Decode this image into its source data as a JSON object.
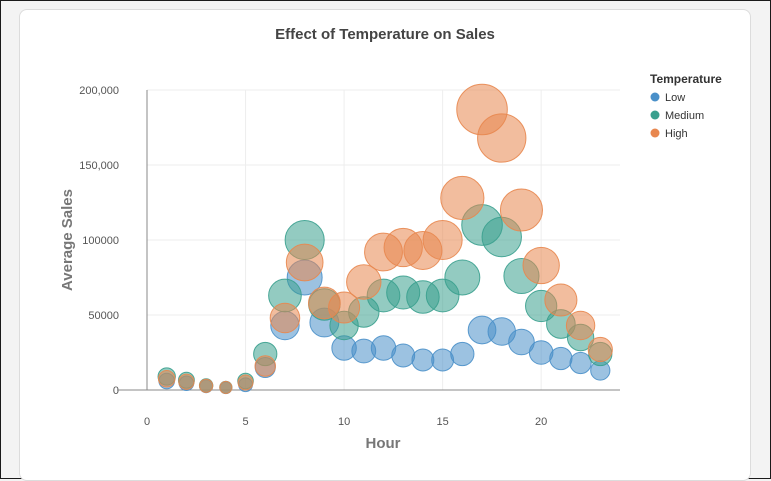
{
  "chart_data": {
    "type": "scatter",
    "title": "Effect of Temperature on Sales",
    "xlabel": "Hour",
    "ylabel": "Average Sales",
    "xlim": [
      0,
      24
    ],
    "ylim": [
      0,
      200000
    ],
    "x_ticks": [
      0,
      5,
      10,
      15,
      20
    ],
    "y_ticks": [
      0,
      50000,
      100000,
      150000,
      200000
    ],
    "y_tick_labels": [
      "0",
      "50000",
      "100000",
      "150,000",
      "200,000"
    ],
    "grid": true,
    "legend": {
      "title": "Temperature",
      "position": "top-right"
    },
    "series": [
      {
        "name": "Low",
        "color": "#4a90c9",
        "points": [
          [
            1,
            6000
          ],
          [
            2,
            4500
          ],
          [
            3,
            2500
          ],
          [
            4,
            1500
          ],
          [
            5,
            3500
          ],
          [
            6,
            15000
          ],
          [
            7,
            43000
          ],
          [
            8,
            75000
          ],
          [
            9,
            45000
          ],
          [
            10,
            28000
          ],
          [
            11,
            26000
          ],
          [
            12,
            28000
          ],
          [
            13,
            23000
          ],
          [
            14,
            20000
          ],
          [
            15,
            20000
          ],
          [
            16,
            24000
          ],
          [
            17,
            40000
          ],
          [
            18,
            39000
          ],
          [
            19,
            32000
          ],
          [
            20,
            25000
          ],
          [
            21,
            21000
          ],
          [
            22,
            18000
          ],
          [
            23,
            13000
          ]
        ]
      },
      {
        "name": "Medium",
        "color": "#3aa08e",
        "points": [
          [
            1,
            9000
          ],
          [
            2,
            6500
          ],
          [
            3,
            3000
          ],
          [
            4,
            1800
          ],
          [
            5,
            6000
          ],
          [
            6,
            24000
          ],
          [
            7,
            63000
          ],
          [
            8,
            100000
          ],
          [
            9,
            57000
          ],
          [
            10,
            43000
          ],
          [
            11,
            52000
          ],
          [
            12,
            63000
          ],
          [
            13,
            65000
          ],
          [
            14,
            62000
          ],
          [
            15,
            63000
          ],
          [
            16,
            75000
          ],
          [
            17,
            110000
          ],
          [
            18,
            102000
          ],
          [
            19,
            76000
          ],
          [
            20,
            56000
          ],
          [
            21,
            44000
          ],
          [
            22,
            35000
          ],
          [
            23,
            24000
          ]
        ]
      },
      {
        "name": "High",
        "color": "#e8874f",
        "points": [
          [
            1,
            7500
          ],
          [
            2,
            5500
          ],
          [
            3,
            2800
          ],
          [
            4,
            1700
          ],
          [
            5,
            5000
          ],
          [
            6,
            16000
          ],
          [
            7,
            48000
          ],
          [
            8,
            85000
          ],
          [
            9,
            58000
          ],
          [
            10,
            55000
          ],
          [
            11,
            72000
          ],
          [
            12,
            92000
          ],
          [
            13,
            95000
          ],
          [
            14,
            93000
          ],
          [
            15,
            100000
          ],
          [
            16,
            128000
          ],
          [
            17,
            187000
          ],
          [
            18,
            168000
          ],
          [
            19,
            120000
          ],
          [
            20,
            83000
          ],
          [
            21,
            60000
          ],
          [
            22,
            43000
          ],
          [
            23,
            27000
          ]
        ]
      }
    ]
  }
}
